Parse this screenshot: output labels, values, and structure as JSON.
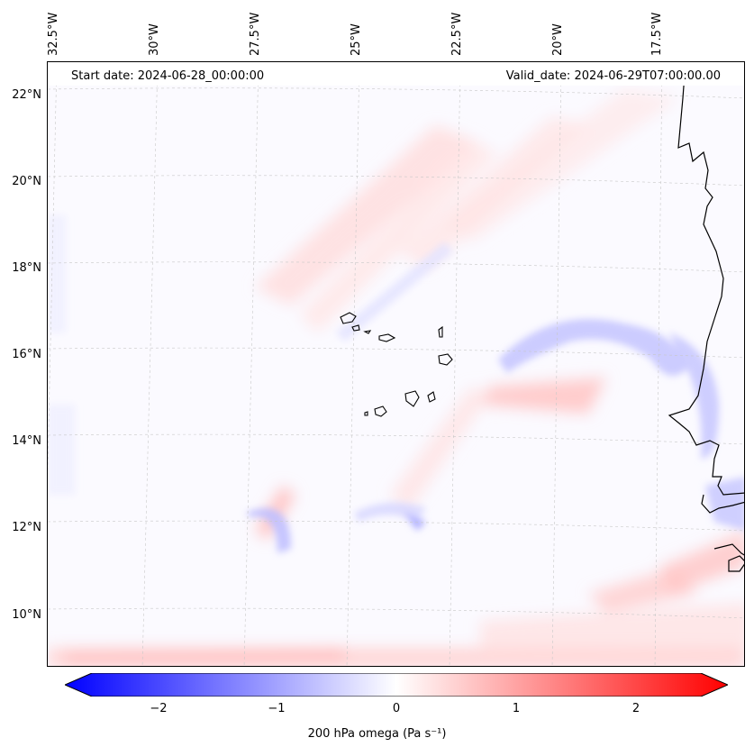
{
  "map": {
    "start_label": "Start date: 2024-06-28_00:00:00",
    "valid_label": "Valid_date: 2024-06-29T07:00:00.00",
    "longitude_labels": [
      "32.5°W",
      "30°W",
      "27.5°W",
      "25°W",
      "22.5°W",
      "20°W",
      "17.5°W"
    ],
    "latitude_labels": [
      "22°N",
      "20°N",
      "18°N",
      "16°N",
      "14°N",
      "12°N",
      "10°N"
    ],
    "features": [
      "Cape Verde islands",
      "West African coastline (Senegal, Gambia, Guinea-Bissau)"
    ]
  },
  "colorbar": {
    "label": "200 hPa omega (Pa s⁻¹)",
    "ticks": [
      "−2",
      "−1",
      "0",
      "1",
      "2"
    ],
    "range": [
      -2.6,
      2.6
    ],
    "colors": {
      "negative": "#0000ff",
      "neutral": "#ffffff",
      "positive": "#ff0000"
    }
  }
}
